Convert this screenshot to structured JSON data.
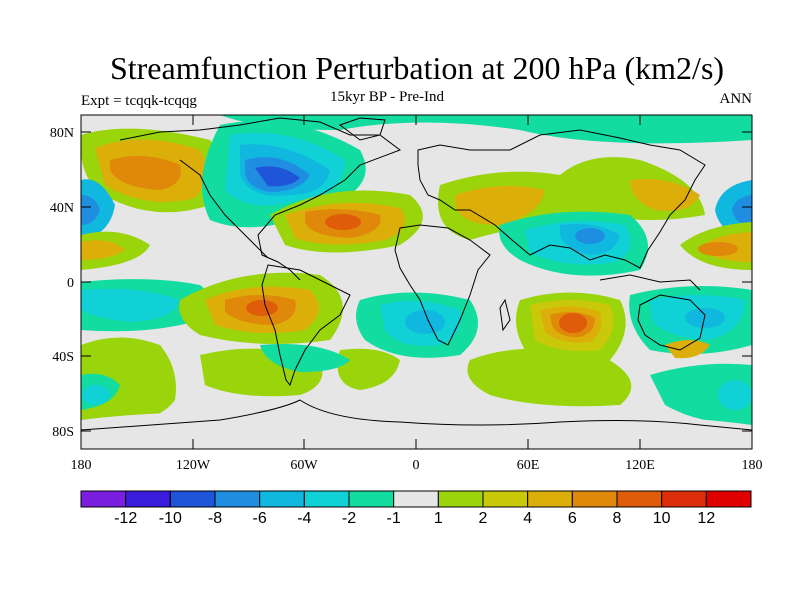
{
  "title": "Streamfunction Perturbation at 200 hPa (km2/s)",
  "subtitle": "15kyr BP - Pre-Ind",
  "left_label": "Expt = tcqqk-tcqqg",
  "right_label": "ANN",
  "lat_ticks": [
    "80N",
    "40N",
    "0",
    "40S",
    "80S"
  ],
  "lon_ticks": [
    "180",
    "120W",
    "60W",
    "0",
    "60E",
    "120E",
    "180"
  ],
  "colorbar": {
    "colors": [
      "#7a1fe0",
      "#3a1ddc",
      "#1f55d8",
      "#1f8ee0",
      "#10b7df",
      "#10d2d6",
      "#12dca0",
      "#e6e6e6",
      "#9ad40a",
      "#c9c90a",
      "#dcae0a",
      "#e0880a",
      "#df5c0a",
      "#dc2e0a",
      "#e00000"
    ],
    "labels": [
      "-12",
      "-10",
      "-8",
      "-6",
      "-4",
      "-2",
      "-1",
      "1",
      "2",
      "4",
      "6",
      "8",
      "10",
      "12"
    ]
  }
}
